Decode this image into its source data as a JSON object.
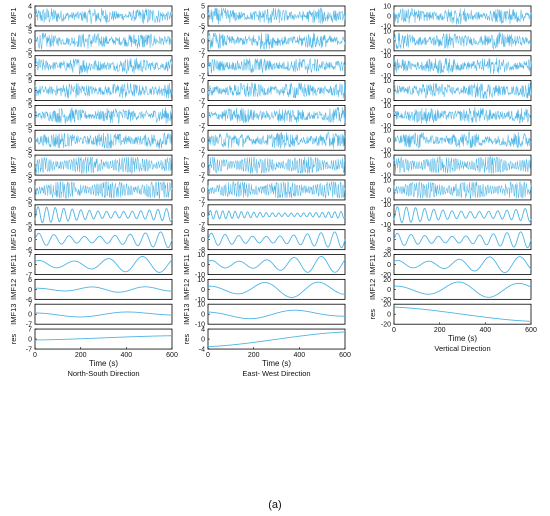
{
  "figure_label": "(a)",
  "chart_data": [
    {
      "type": "line",
      "caption": "North-South Direction",
      "xlabel": "Time (s)",
      "xlim": [
        0,
        600
      ],
      "xticks": [
        0,
        200,
        400,
        600
      ],
      "series_color": "#4fb5e6",
      "panels": [
        {
          "name": "IMF1",
          "ylim": [
            -4,
            4
          ],
          "yticks": [
            -4,
            0,
            4
          ],
          "pattern": "noise"
        },
        {
          "name": "IMF2",
          "ylim": [
            -5,
            5
          ],
          "yticks": [
            -5,
            0,
            5
          ],
          "pattern": "noise"
        },
        {
          "name": "IMF3",
          "ylim": [
            -5,
            5
          ],
          "yticks": [
            -5,
            0,
            5
          ],
          "pattern": "noise"
        },
        {
          "name": "IMF4",
          "ylim": [
            -5,
            5
          ],
          "yticks": [
            -5,
            0,
            5
          ],
          "pattern": "noise"
        },
        {
          "name": "IMF5",
          "ylim": [
            -5,
            5
          ],
          "yticks": [
            -5,
            0,
            5
          ],
          "pattern": "noise"
        },
        {
          "name": "IMF6",
          "ylim": [
            -5,
            5
          ],
          "yticks": [
            -5,
            0,
            5
          ],
          "pattern": "noise"
        },
        {
          "name": "IMF7",
          "ylim": [
            -5,
            5
          ],
          "yticks": [
            -5,
            0,
            5
          ],
          "pattern": "burst"
        },
        {
          "name": "IMF8",
          "ylim": [
            -5,
            5
          ],
          "yticks": [
            -5,
            0,
            5
          ],
          "pattern": "burst"
        },
        {
          "name": "IMF9",
          "ylim": [
            -5,
            5
          ],
          "yticks": [
            -5,
            0,
            5
          ],
          "pattern": "osc",
          "cycles": 16
        },
        {
          "name": "IMF10",
          "ylim": [
            -6,
            6
          ],
          "yticks": [
            -6,
            0,
            6
          ],
          "pattern": "osc",
          "cycles": 9
        },
        {
          "name": "IMF11",
          "ylim": [
            -7,
            7
          ],
          "yticks": [
            -7,
            0,
            7
          ],
          "pattern": "osc",
          "cycles": 4
        },
        {
          "name": "IMF12",
          "ylim": [
            -6,
            6
          ],
          "yticks": [
            -6,
            0,
            6
          ],
          "pattern": "osc",
          "cycles": 2.5,
          "amp": 0.3
        },
        {
          "name": "IMF13",
          "ylim": [
            -7,
            7
          ],
          "yticks": [
            -7,
            0,
            7
          ],
          "pattern": "osc",
          "cycles": 1.3,
          "amp": 0.3
        },
        {
          "name": "res",
          "ylim": [
            -7,
            7
          ],
          "yticks": [
            -7,
            0,
            7
          ],
          "pattern": "trend",
          "trend": [
            -0.1,
            0.35
          ],
          "showx": true
        }
      ]
    },
    {
      "type": "line",
      "caption": "East- West Direction",
      "xlabel": "Time (s)",
      "xlim": [
        0,
        600
      ],
      "xticks": [
        0,
        200,
        400,
        600
      ],
      "series_color": "#4fb5e6",
      "panels": [
        {
          "name": "IMF1",
          "ylim": [
            -5,
            5
          ],
          "yticks": [
            -5,
            0,
            5
          ],
          "pattern": "noise"
        },
        {
          "name": "IMF2",
          "ylim": [
            -7,
            7
          ],
          "yticks": [
            -7,
            0,
            7
          ],
          "pattern": "noise"
        },
        {
          "name": "IMF3",
          "ylim": [
            -7,
            7
          ],
          "yticks": [
            -7,
            0,
            7
          ],
          "pattern": "noise"
        },
        {
          "name": "IMF4",
          "ylim": [
            -7,
            7
          ],
          "yticks": [
            -7,
            0,
            7
          ],
          "pattern": "noise"
        },
        {
          "name": "IMF5",
          "ylim": [
            -7,
            7
          ],
          "yticks": [
            -7,
            0,
            7
          ],
          "pattern": "noise"
        },
        {
          "name": "IMF6",
          "ylim": [
            -7,
            7
          ],
          "yticks": [
            -7,
            0,
            7
          ],
          "pattern": "noise"
        },
        {
          "name": "IMF7",
          "ylim": [
            -7,
            7
          ],
          "yticks": [
            -7,
            0,
            7
          ],
          "pattern": "burst"
        },
        {
          "name": "IMF8",
          "ylim": [
            -7,
            7
          ],
          "yticks": [
            -7,
            0,
            7
          ],
          "pattern": "burst"
        },
        {
          "name": "IMF9",
          "ylim": [
            -7,
            7
          ],
          "yticks": [
            -7,
            0,
            7
          ],
          "pattern": "osc",
          "cycles": 22,
          "amp": 0.45
        },
        {
          "name": "IMF10",
          "ylim": [
            -8,
            8
          ],
          "yticks": [
            -8,
            0,
            8
          ],
          "pattern": "osc",
          "cycles": 10
        },
        {
          "name": "IMF11",
          "ylim": [
            -10,
            10
          ],
          "yticks": [
            -10,
            0,
            10
          ],
          "pattern": "osc",
          "cycles": 5
        },
        {
          "name": "IMF12",
          "ylim": [
            -10,
            10
          ],
          "yticks": [
            -10,
            0,
            10
          ],
          "pattern": "osc",
          "cycles": 2.5
        },
        {
          "name": "IMF13",
          "ylim": [
            -10,
            10
          ],
          "yticks": [
            -10,
            0,
            10
          ],
          "pattern": "osc",
          "cycles": 1.4,
          "amp": 0.5
        },
        {
          "name": "res",
          "ylim": [
            -4,
            4
          ],
          "yticks": [
            -4,
            0,
            4
          ],
          "pattern": "trend",
          "trend": [
            -0.8,
            0.75
          ],
          "showx": true
        }
      ]
    },
    {
      "type": "line",
      "caption": "Vertical Direction",
      "xlabel": "Time (s)",
      "xlim": [
        0,
        600
      ],
      "xticks": [
        0,
        200,
        400,
        600
      ],
      "series_color": "#4fb5e6",
      "panels": [
        {
          "name": "IMF1",
          "ylim": [
            -10,
            10
          ],
          "yticks": [
            -10,
            0,
            10
          ],
          "pattern": "noise"
        },
        {
          "name": "IMF2",
          "ylim": [
            -10,
            10
          ],
          "yticks": [
            -10,
            0,
            10
          ],
          "pattern": "noise"
        },
        {
          "name": "IMF3",
          "ylim": [
            -10,
            10
          ],
          "yticks": [
            -10,
            0,
            10
          ],
          "pattern": "noise"
        },
        {
          "name": "IMF4",
          "ylim": [
            -10,
            10
          ],
          "yticks": [
            -10,
            0,
            10
          ],
          "pattern": "noise"
        },
        {
          "name": "IMF5",
          "ylim": [
            -10,
            10
          ],
          "yticks": [
            -10,
            0,
            10
          ],
          "pattern": "noise"
        },
        {
          "name": "IMF6",
          "ylim": [
            -10,
            10
          ],
          "yticks": [
            -10,
            0,
            10
          ],
          "pattern": "noise"
        },
        {
          "name": "IMF7",
          "ylim": [
            -10,
            10
          ],
          "yticks": [
            -10,
            0,
            10
          ],
          "pattern": "burst"
        },
        {
          "name": "IMF8",
          "ylim": [
            -10,
            10
          ],
          "yticks": [
            -10,
            0,
            10
          ],
          "pattern": "burst"
        },
        {
          "name": "IMF9",
          "ylim": [
            -10,
            10
          ],
          "yticks": [
            -10,
            0,
            10
          ],
          "pattern": "osc",
          "cycles": 15
        },
        {
          "name": "IMF10",
          "ylim": [
            -8,
            8
          ],
          "yticks": [
            -8,
            0,
            8
          ],
          "pattern": "osc",
          "cycles": 10
        },
        {
          "name": "IMF11",
          "ylim": [
            -20,
            20
          ],
          "yticks": [
            -20,
            0,
            20
          ],
          "pattern": "osc",
          "cycles": 4.5
        },
        {
          "name": "IMF12",
          "ylim": [
            -20,
            20
          ],
          "yticks": [
            -20,
            0,
            20
          ],
          "pattern": "osc",
          "cycles": 2.2
        },
        {
          "name": "res",
          "ylim": [
            -20,
            20
          ],
          "yticks": [
            -20,
            0,
            20
          ],
          "pattern": "trend",
          "trend": [
            0.75,
            -0.75
          ],
          "showx": true
        }
      ]
    }
  ]
}
